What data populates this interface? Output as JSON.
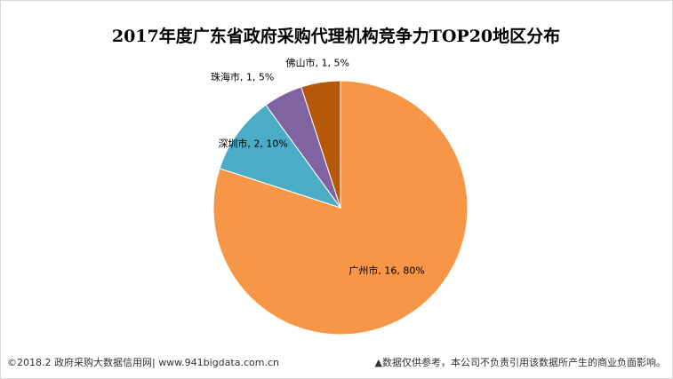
{
  "chart_data": {
    "type": "pie",
    "title": "2017年度广东省政府采购代理机构竞争力TOP20地区分布",
    "categories": [
      "广州市",
      "深圳市",
      "珠海市",
      "佛山市"
    ],
    "values": [
      16,
      2,
      1,
      1
    ],
    "value_labels": [
      "广州市, 16, 80%",
      "深圳市, 2, 10%",
      "珠海市, 1, 5%",
      "佛山市, 1, 5%"
    ],
    "colors": [
      "#f79646",
      "#4bacc6",
      "#8064a2",
      "#b6580a"
    ],
    "source": "©2018.2 政府采购大数据信用网| www.941bigdata.com.cn",
    "note": "▲数据仅供参考，本公司不负责引用该数据所产生的商业负面影响。"
  }
}
